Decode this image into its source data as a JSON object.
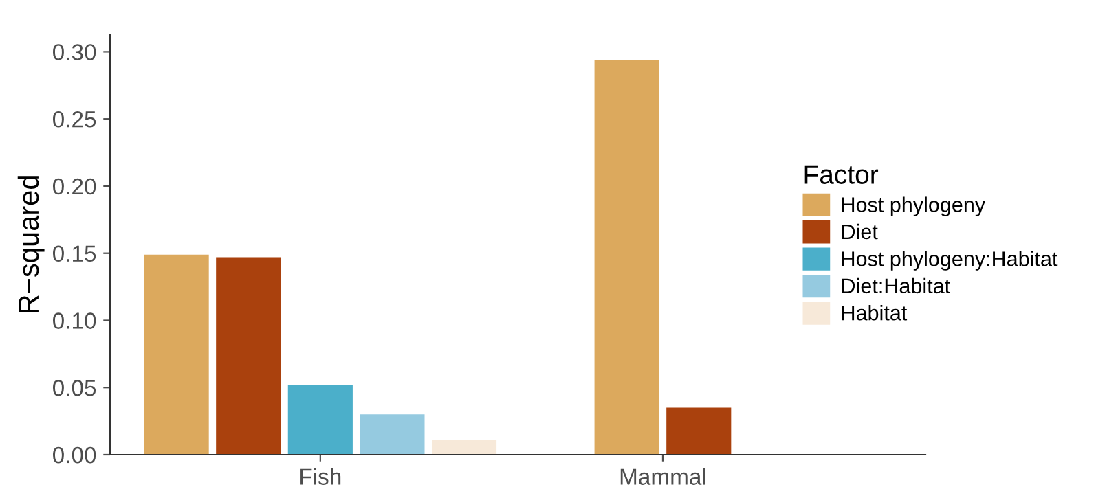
{
  "chart_data": {
    "type": "bar",
    "ylabel": "R−squared",
    "legend_title": "Factor",
    "legend": "right",
    "categories": [
      "Fish",
      "Mammal"
    ],
    "series": [
      {
        "name": "Host phylogeny",
        "color": "#dca95d",
        "values": [
          0.149,
          0.294
        ]
      },
      {
        "name": "Diet",
        "color": "#aa410d",
        "values": [
          0.147,
          0.035
        ]
      },
      {
        "name": "Host phylogeny:Habitat",
        "color": "#4bafca",
        "values": [
          0.052,
          null
        ]
      },
      {
        "name": "Diet:Habitat",
        "color": "#95cae0",
        "values": [
          0.03,
          null
        ]
      },
      {
        "name": "Habitat",
        "color": "#f7e9d9",
        "values": [
          0.011,
          null
        ]
      }
    ],
    "ylim": [
      0,
      0.313
    ],
    "yticks": [
      {
        "value": 0,
        "label": "0.00"
      },
      {
        "value": 0.05,
        "label": "0.05"
      },
      {
        "value": 0.1,
        "label": "0.10"
      },
      {
        "value": 0.15,
        "label": "0.15"
      },
      {
        "value": 0.2,
        "label": "0.20"
      },
      {
        "value": 0.25,
        "label": "0.25"
      },
      {
        "value": 0.3,
        "label": "0.30"
      }
    ],
    "grid": false
  }
}
